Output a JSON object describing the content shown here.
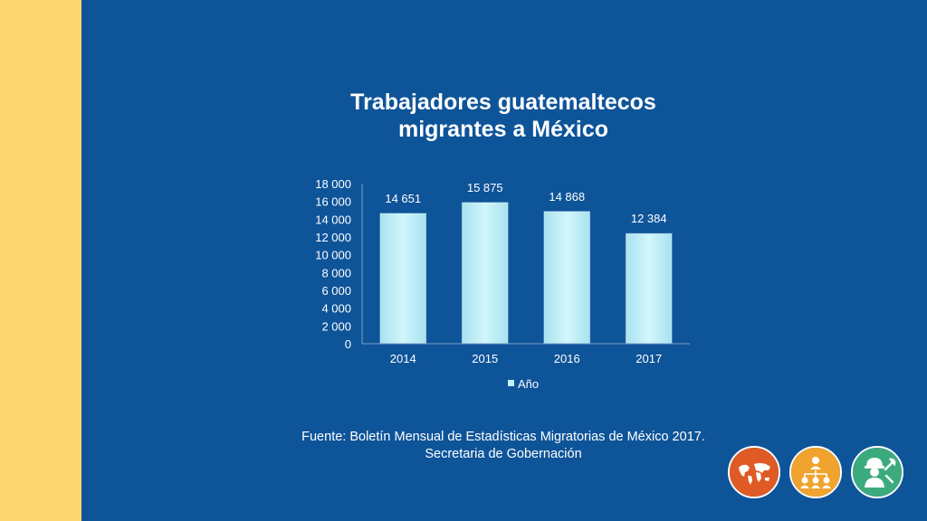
{
  "title": {
    "line1": "Trabajadores guatemaltecos",
    "line2": "migrantes a México"
  },
  "chart_data": {
    "type": "bar",
    "categories": [
      "2014",
      "2015",
      "2016",
      "2017"
    ],
    "series": [
      {
        "name": "Año",
        "values": [
          14651,
          15875,
          14868,
          12384
        ]
      }
    ],
    "data_labels": [
      "14 651",
      "15 875",
      "14 868",
      "12 384"
    ],
    "yticks": [
      "0",
      "2 000",
      "4 000",
      "6 000",
      "8 000",
      "10 000",
      "12 000",
      "14 000",
      "16 000",
      "18 000"
    ],
    "ylim": [
      0,
      18000
    ],
    "xlabel": "",
    "ylabel": "",
    "legend_position": "bottom",
    "grid": false,
    "colors": {
      "bar": "#c4f0fa",
      "axis": "#7f9ec4",
      "text": "#ffffff"
    }
  },
  "source": {
    "line1": "Fuente: Boletín Mensual de Estadísticas Migratorias de México 2017.",
    "line2": "Secretaria de Gobernación"
  },
  "icons": [
    {
      "name": "world-map-icon",
      "color": "#e05a26"
    },
    {
      "name": "team-network-icon",
      "color": "#f0a32e"
    },
    {
      "name": "worker-tools-icon",
      "color": "#3bab7e"
    }
  ],
  "colors": {
    "background": "#0e5499",
    "left_strip": "#fed66f"
  }
}
